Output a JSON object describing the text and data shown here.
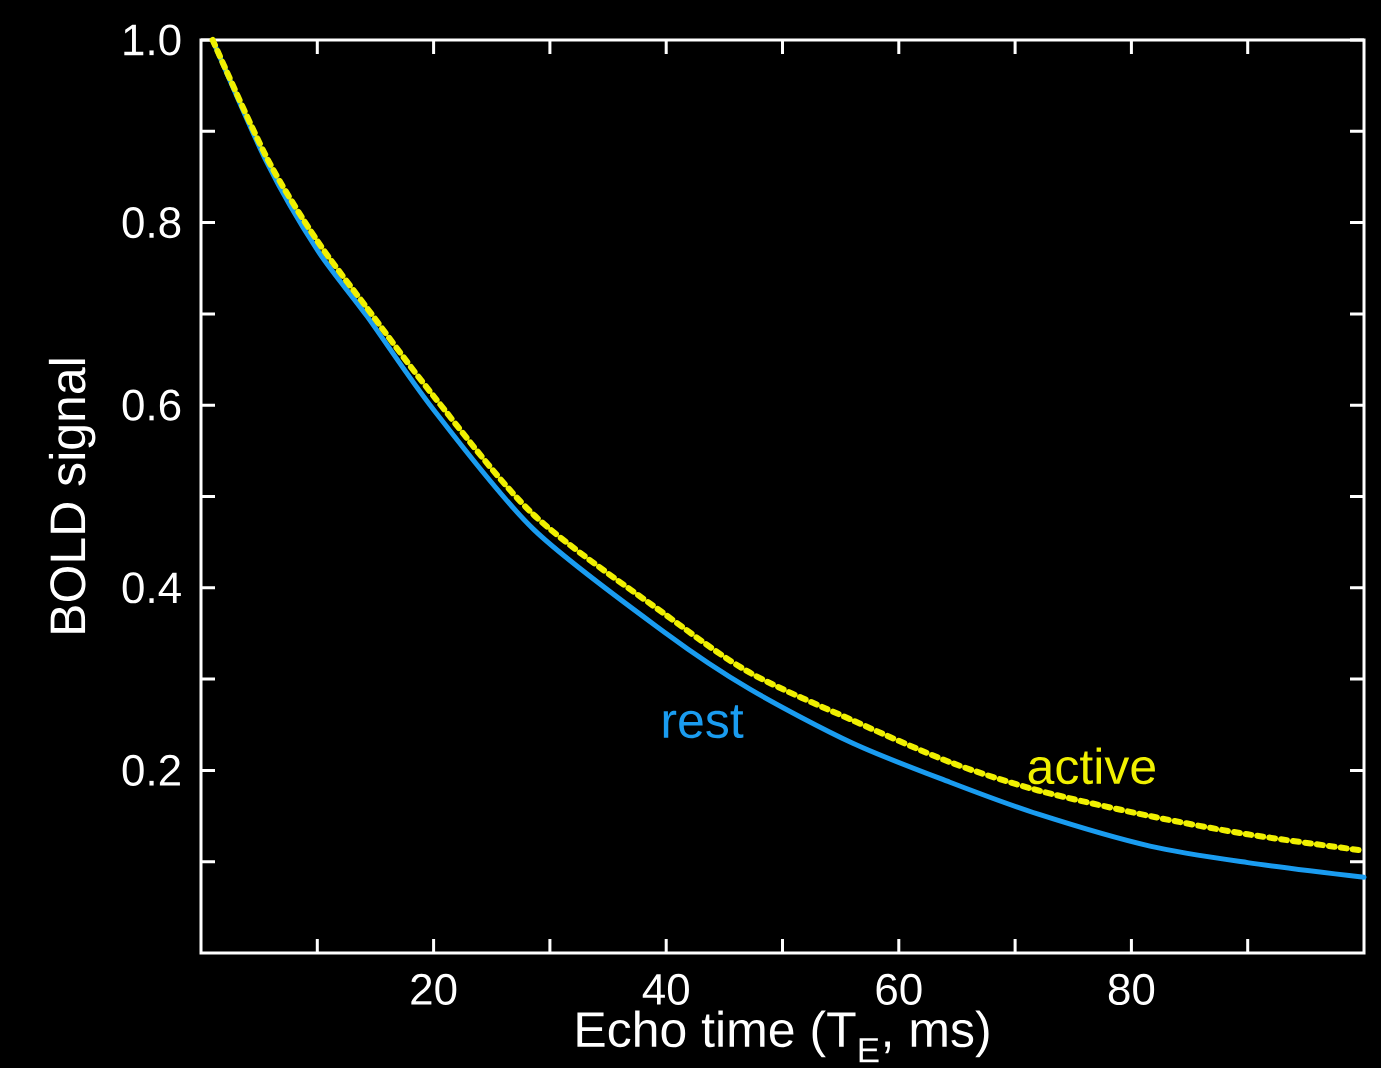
{
  "chart_data": {
    "type": "line",
    "xlabel": "Echo time (T$_{E}$, ms)",
    "ylabel": "BOLD signal",
    "xlim": [
      0,
      100
    ],
    "ylim": [
      0,
      1
    ],
    "xticks": [
      {
        "value": 10,
        "label": null
      },
      20,
      {
        "value": 30,
        "label": null
      },
      40,
      {
        "value": 50,
        "label": null
      },
      60,
      {
        "value": 70,
        "label": null
      },
      80,
      {
        "value": 90,
        "label": null
      }
    ],
    "yticks": [
      {
        "value": 0.1,
        "label": null
      },
      0.2,
      {
        "value": 0.3,
        "label": null
      },
      0.4,
      {
        "value": 0.5,
        "label": null
      },
      0.6,
      {
        "value": 0.7,
        "label": null
      },
      0.8,
      {
        "value": 0.9,
        "label": null
      },
      {
        "value": 1.0,
        "label": "1.0"
      }
    ],
    "series": [
      {
        "name": "rest",
        "color": "#1a9cf0",
        "line_style": "solid",
        "x": [
          1,
          5.7,
          10,
          14.3,
          20,
          28.6,
          40,
          47.2,
          56,
          64.4,
          72,
          81.6,
          90,
          100
        ],
        "values": [
          1.0,
          0.865,
          0.77,
          0.697,
          0.595,
          0.464,
          0.35,
          0.289,
          0.23,
          0.187,
          0.152,
          0.117,
          0.099,
          0.083
        ]
      },
      {
        "name": "active",
        "color": "#f0f000",
        "line_style": "dotted",
        "x": [
          1,
          5.7,
          10,
          14.3,
          20,
          28.6,
          40,
          47.2,
          56,
          64.4,
          72,
          81.6,
          90,
          100
        ],
        "values": [
          1.0,
          0.87,
          0.78,
          0.706,
          0.61,
          0.48,
          0.37,
          0.307,
          0.255,
          0.209,
          0.178,
          0.15,
          0.13,
          0.112
        ]
      }
    ]
  }
}
